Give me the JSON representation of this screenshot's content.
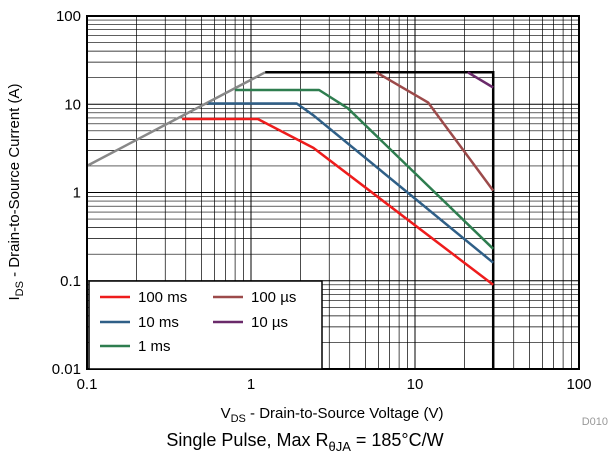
{
  "chart_data": {
    "type": "line",
    "xscale": "log",
    "yscale": "log",
    "xlim": [
      0.1,
      100
    ],
    "ylim": [
      0.01,
      100
    ],
    "x_ticks": [
      "0.1",
      "1",
      "10",
      "100"
    ],
    "y_ticks": [
      "0.01",
      "0.1",
      "1",
      "10",
      "100"
    ],
    "grid": true,
    "legend_position": "bottom-left",
    "xlabel": {
      "main": "V",
      "sub": "DS",
      "rest": " - Drain-to-Source Voltage (V)"
    },
    "ylabel": {
      "main": "I",
      "sub": "DS",
      "rest": " - Drain-to-Source Current (A)"
    },
    "caption": {
      "main": "Single Pulse, Max R",
      "sub": "θJA",
      "rest": " = 185°C/W"
    },
    "tag": "D010",
    "series": [
      {
        "name": "100 ms",
        "color": "#ee1c1c",
        "points": [
          [
            0.38,
            6.8
          ],
          [
            1.1,
            6.8
          ],
          [
            2.4,
            3.2
          ],
          [
            30,
            0.09
          ]
        ]
      },
      {
        "name": "10 ms",
        "color": "#2f5f87",
        "points": [
          [
            0.55,
            10.2
          ],
          [
            1.9,
            10.2
          ],
          [
            2.4,
            7.5
          ],
          [
            30,
            0.16
          ]
        ]
      },
      {
        "name": "1 ms",
        "color": "#2e7d4f",
        "points": [
          [
            0.8,
            14.5
          ],
          [
            2.6,
            14.5
          ],
          [
            3.9,
            9.0
          ],
          [
            30,
            0.23
          ]
        ]
      },
      {
        "name": "100 µs",
        "color": "#9c4a4a",
        "points": [
          [
            5.8,
            23
          ],
          [
            12,
            10.5
          ],
          [
            30,
            1.05
          ]
        ]
      },
      {
        "name": "10 µs",
        "color": "#6a2a6a",
        "points": [
          [
            21,
            23
          ],
          [
            30,
            15.5
          ]
        ]
      }
    ],
    "limits": [
      {
        "color": "#888888",
        "points": [
          [
            0.1,
            2.0
          ],
          [
            1.22,
            23
          ]
        ]
      },
      {
        "color": "#000000",
        "points": [
          [
            1.22,
            23
          ],
          [
            30,
            23
          ],
          [
            30,
            0.01
          ]
        ]
      }
    ]
  }
}
